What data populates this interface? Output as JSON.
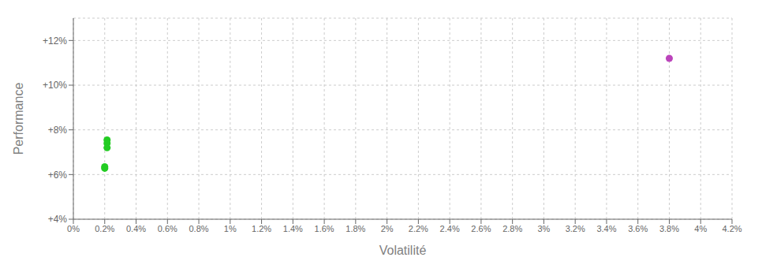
{
  "chart_data": {
    "type": "scatter",
    "xlabel": "Volatilité",
    "ylabel": "Performance",
    "xlim": [
      0.0,
      4.2
    ],
    "ylim": [
      4.0,
      13.0
    ],
    "xticks": [
      {
        "value": 0.0,
        "label": "0%"
      },
      {
        "value": 0.2,
        "label": "0.2%"
      },
      {
        "value": 0.4,
        "label": "0.4%"
      },
      {
        "value": 0.6,
        "label": "0.6%"
      },
      {
        "value": 0.8,
        "label": "0.8%"
      },
      {
        "value": 1.0,
        "label": "1%"
      },
      {
        "value": 1.2,
        "label": "1.2%"
      },
      {
        "value": 1.4,
        "label": "1.4%"
      },
      {
        "value": 1.6,
        "label": "1.6%"
      },
      {
        "value": 1.8,
        "label": "1.8%"
      },
      {
        "value": 2.0,
        "label": "2%"
      },
      {
        "value": 2.2,
        "label": "2.2%"
      },
      {
        "value": 2.4,
        "label": "2.4%"
      },
      {
        "value": 2.6,
        "label": "2.6%"
      },
      {
        "value": 2.8,
        "label": "2.8%"
      },
      {
        "value": 3.0,
        "label": "3%"
      },
      {
        "value": 3.2,
        "label": "3.2%"
      },
      {
        "value": 3.4,
        "label": "3.4%"
      },
      {
        "value": 3.6,
        "label": "3.6%"
      },
      {
        "value": 3.8,
        "label": "3.8%"
      },
      {
        "value": 4.0,
        "label": "4%"
      },
      {
        "value": 4.2,
        "label": "4.2%"
      }
    ],
    "yticks": [
      {
        "value": 4.0,
        "label": "+4%"
      },
      {
        "value": 6.0,
        "label": "+6%"
      },
      {
        "value": 8.0,
        "label": "+8%"
      },
      {
        "value": 10.0,
        "label": "+10%"
      },
      {
        "value": 12.0,
        "label": "+12%"
      }
    ],
    "grid": true,
    "series": [
      {
        "color": "#22cc22",
        "x": [
          0.2,
          0.2,
          0.215,
          0.215,
          0.215
        ],
        "values": [
          6.28,
          6.35,
          7.55,
          7.4,
          7.2
        ]
      },
      {
        "color": "#bb44bb",
        "x": [
          3.8
        ],
        "values": [
          11.2
        ]
      }
    ]
  }
}
